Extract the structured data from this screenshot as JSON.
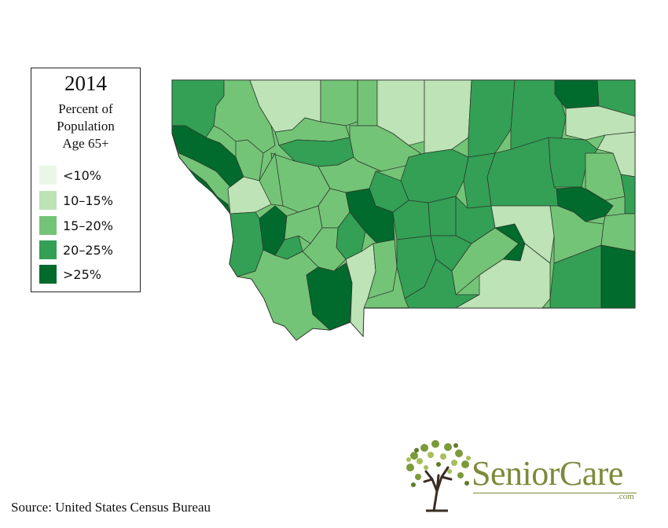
{
  "legend": {
    "year": "2014",
    "subtitle_lines": [
      "Percent of",
      "Population",
      "Age 65+"
    ],
    "items": [
      {
        "label": "<10%",
        "color": "#eaf6e6"
      },
      {
        "label": "10–15%",
        "color": "#bde3b6"
      },
      {
        "label": "15–20%",
        "color": "#74c477"
      },
      {
        "label": "20–25%",
        "color": "#33a055"
      },
      {
        "label": ">25%",
        "color": "#006b2c"
      }
    ]
  },
  "source": "Source: United States Census Bureau",
  "logo": {
    "name": "SeniorCare",
    "suffix": ".com"
  }
}
